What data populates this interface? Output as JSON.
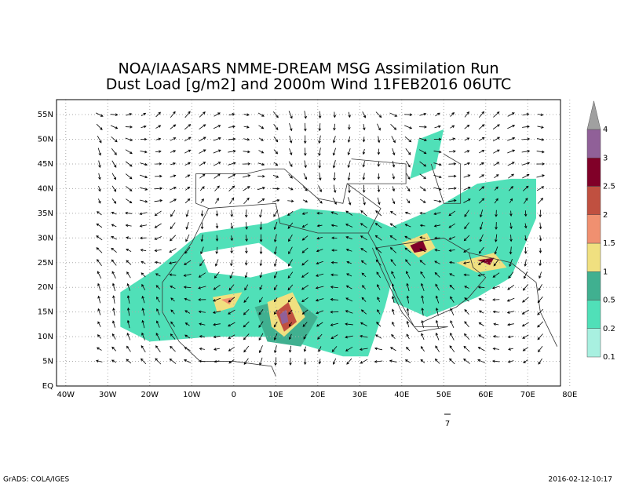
{
  "title": [
    "NOA/IAASARS NMME-DREAM MSG Assimilation Run",
    "Dust Load [g/m2] and 2000m Wind 11FEB2016 06UTC"
  ],
  "map": {
    "lon_labels": [
      "40W",
      "30W",
      "20W",
      "10W",
      "0",
      "10E",
      "20E",
      "30E",
      "40E",
      "50E",
      "60E",
      "70E",
      "80E"
    ],
    "lat_labels": [
      "EQ",
      "5N",
      "10N",
      "15N",
      "20N",
      "25N",
      "30N",
      "35N",
      "40N",
      "45N",
      "50N",
      "55N"
    ],
    "wind_reference": "7"
  },
  "colorbar": {
    "levels": [
      "0.1",
      "0.2",
      "0.5",
      "1",
      "1.5",
      "2",
      "2.5",
      "3",
      "4"
    ],
    "colors": [
      "#a8f0e0",
      "#50e0b8",
      "#40b090",
      "#f0e080",
      "#f09070",
      "#c05040",
      "#800028",
      "#906098",
      "#a0a0a0"
    ]
  },
  "footer": {
    "left": "GrADS: COLA/IGES",
    "right": "2016-02-12-10:17"
  }
}
